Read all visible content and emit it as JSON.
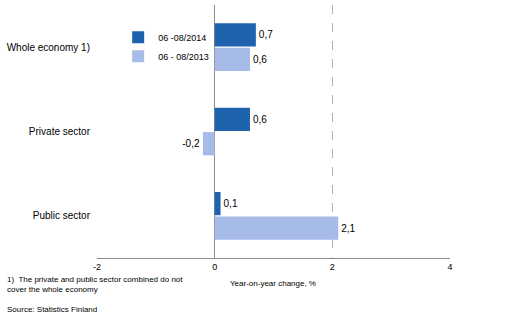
{
  "chart_data": {
    "type": "bar",
    "orientation": "horizontal",
    "categories": [
      "Whole economy 1)",
      "Private sector",
      "Public sector"
    ],
    "series": [
      {
        "name": "06 -08/2014",
        "color": "#1f63ae",
        "values": [
          0.7,
          0.6,
          0.1
        ],
        "value_labels": [
          "0,7",
          "0,6",
          "0,1"
        ]
      },
      {
        "name": "06 - 08/2013",
        "color": "#a7bbe8",
        "values": [
          0.6,
          -0.2,
          2.1
        ],
        "value_labels": [
          "0,6",
          "-0,2",
          "2,1"
        ]
      }
    ],
    "xlabel": "Year-on-year change, %",
    "xlim": [
      -2,
      4
    ],
    "xticks": [
      -2,
      0,
      2,
      4
    ],
    "grid": true,
    "legend": "top left",
    "data_labels": true,
    "annotations": [
      "1)  The private and public sector combined do not",
      "cover the whole economy",
      "Source: Statistics Finland"
    ]
  }
}
